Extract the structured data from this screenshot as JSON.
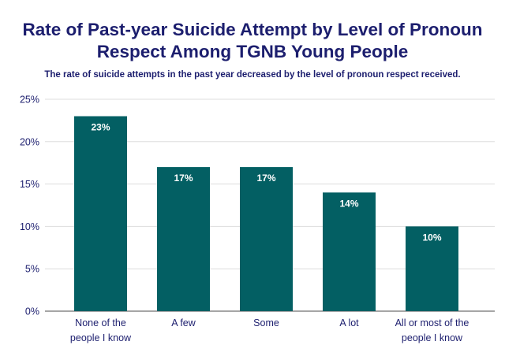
{
  "chart_data": {
    "type": "bar",
    "title": "Rate of Past-year Suicide Attempt by Level of Pronoun Respect Among TGNB Young People",
    "subtitle": "The rate of suicide attempts in the past year decreased by the level of pronoun respect received.",
    "categories": [
      [
        "None of the",
        "people I know"
      ],
      [
        "A few"
      ],
      [
        "Some"
      ],
      [
        "A lot"
      ],
      [
        "All or most of the",
        "people I know"
      ]
    ],
    "values": [
      23,
      17,
      17,
      14,
      10
    ],
    "data_labels": [
      "23%",
      "17%",
      "17%",
      "14%",
      "10%"
    ],
    "xlabel": "",
    "ylabel": "",
    "ylim": [
      0,
      25
    ],
    "yticks": [
      "0%",
      "5%",
      "10%",
      "15%",
      "20%",
      "25%"
    ],
    "grid": true,
    "bar_color": "#035f63",
    "text_color": "#1c1e6e"
  }
}
